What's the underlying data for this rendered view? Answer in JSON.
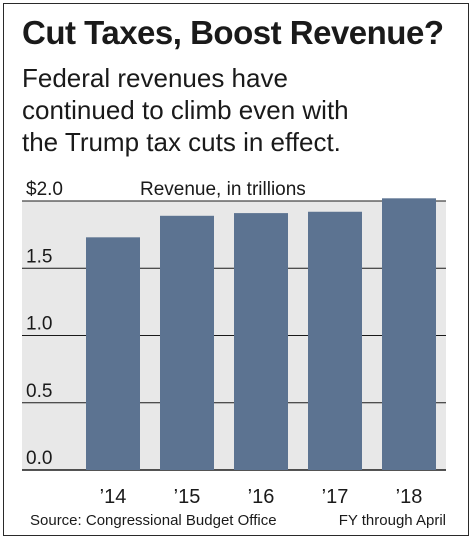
{
  "title": "Cut Taxes, Boost Revenue?",
  "subtitle_lines": [
    "Federal revenues have",
    "continued to climb even with",
    "the Trump tax cuts in effect."
  ],
  "source": "Source: Congressional Budget Office",
  "note": "FY through April",
  "colors": {
    "bar": "#5c7391",
    "axis": "#1a1a1a",
    "grid": "#1a1a1a",
    "chart_bg": "#e8e8e8"
  },
  "chart_data": {
    "type": "bar",
    "title": "",
    "ylabel": "Revenue, in trillions",
    "xlabel": "",
    "categories": [
      "’14",
      "’15",
      "’16",
      "’17",
      "’18"
    ],
    "values": [
      1.73,
      1.89,
      1.91,
      1.92,
      2.02
    ],
    "ylim": [
      0,
      2.0
    ],
    "yticks": [
      0.0,
      0.5,
      1.0,
      1.5,
      2.0
    ],
    "ytick_labels": [
      "0.0",
      "0.5",
      "1.0",
      "1.5",
      "$2.0"
    ],
    "grid": true,
    "legend": "none"
  }
}
